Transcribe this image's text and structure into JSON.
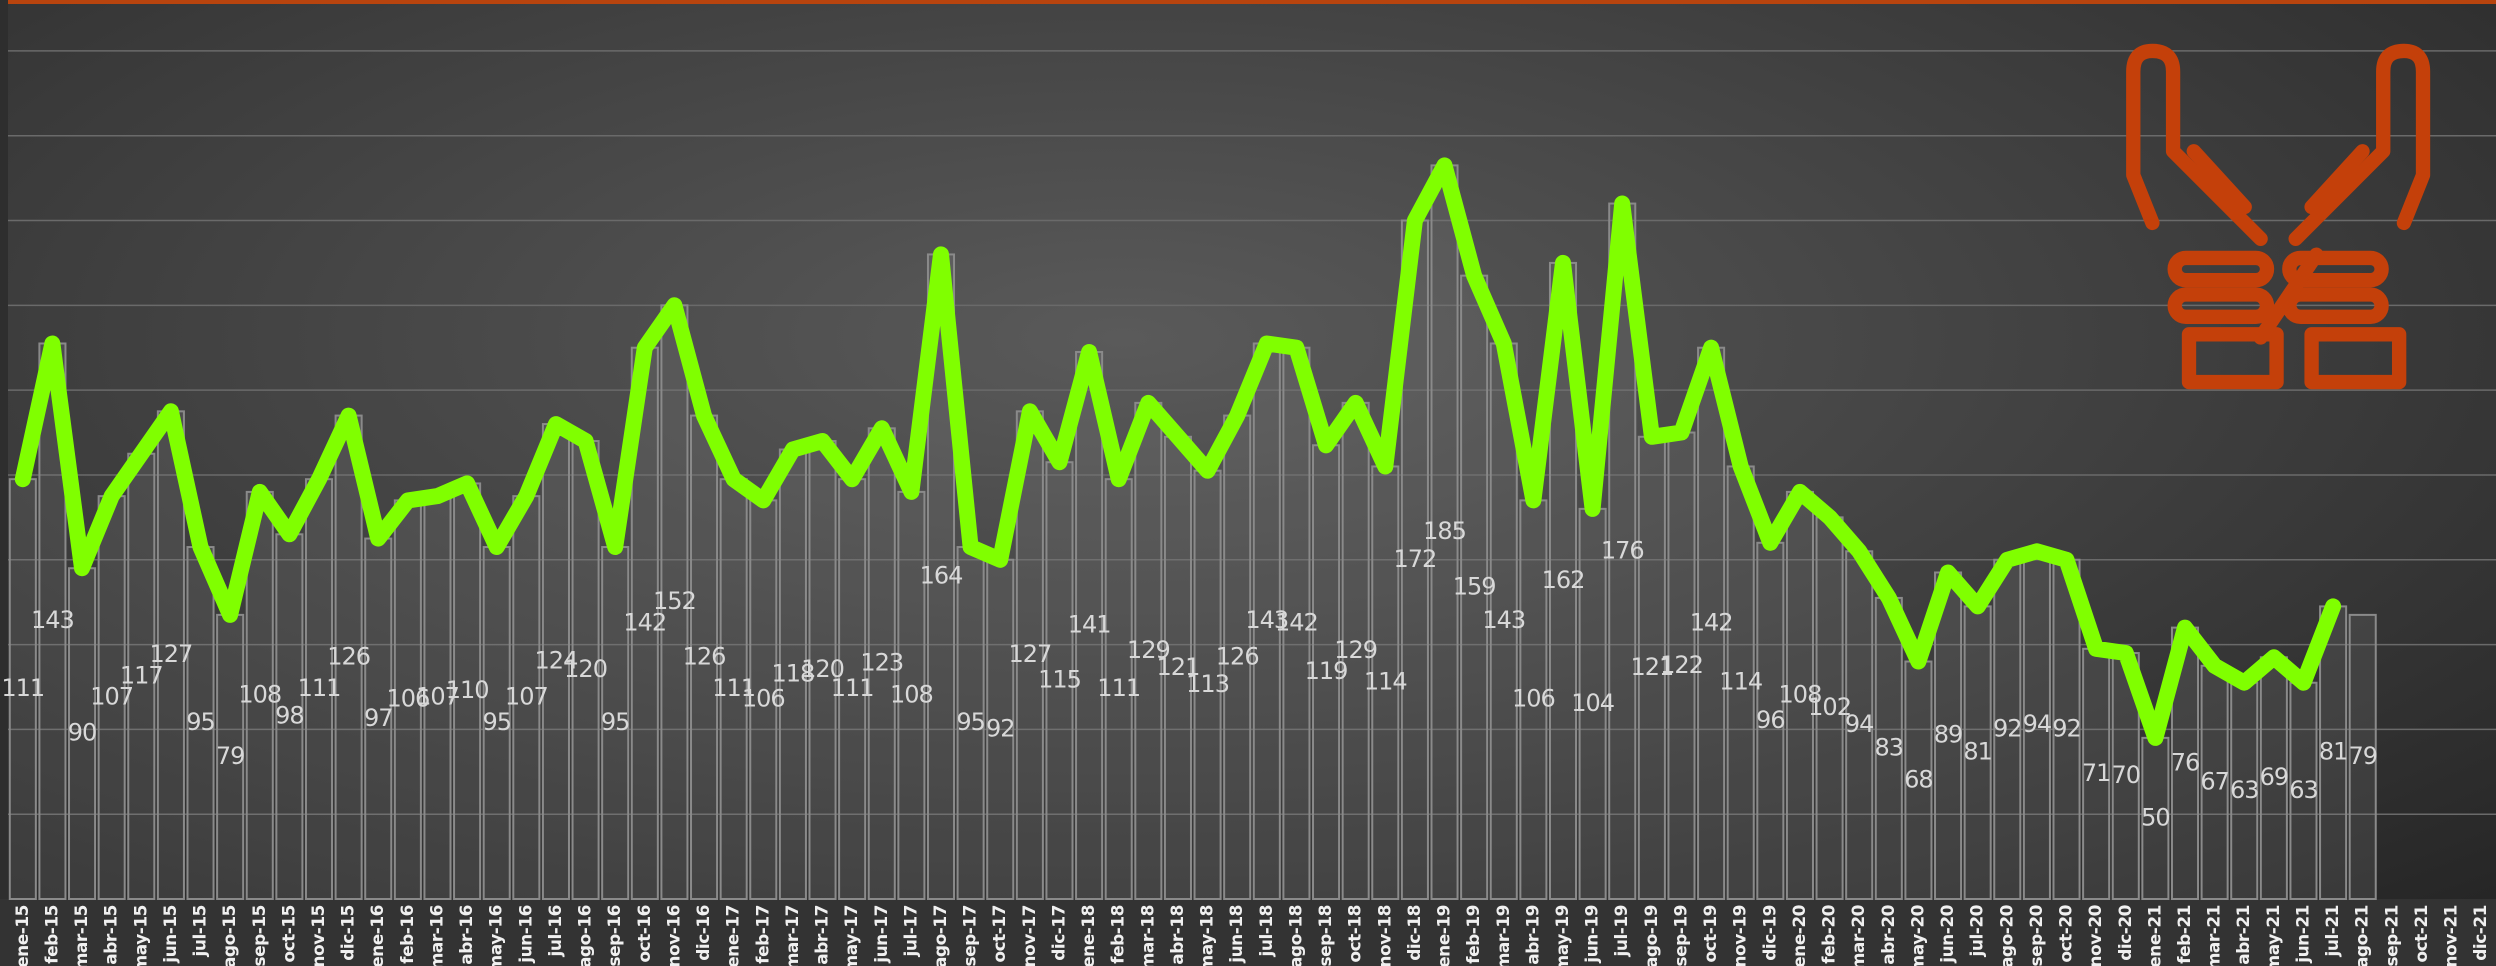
{
  "chart_data": {
    "type": "bar",
    "categories": [
      "ene-15",
      "feb-15",
      "mar-15",
      "abr-15",
      "may-15",
      "jun-15",
      "jul-15",
      "ago-15",
      "sep-15",
      "oct-15",
      "nov-15",
      "dic-15",
      "ene-16",
      "feb-16",
      "mar-16",
      "abr-16",
      "may-16",
      "jun-16",
      "jul-16",
      "ago-16",
      "sep-16",
      "oct-16",
      "nov-16",
      "dic-16",
      "ene-17",
      "feb-17",
      "mar-17",
      "abr-17",
      "may-17",
      "jun-17",
      "jul-17",
      "ago-17",
      "sep-17",
      "oct-17",
      "nov-17",
      "dic-17",
      "ene-18",
      "feb-18",
      "mar-18",
      "abr-18",
      "may-18",
      "jun-18",
      "jul-18",
      "ago-18",
      "sep-18",
      "oct-18",
      "nov-18",
      "dic-18",
      "ene-19",
      "feb-19",
      "mar-19",
      "abr-19",
      "may-19",
      "jun-19",
      "jul-19",
      "ago-19",
      "sep-19",
      "oct-19",
      "nov-19",
      "dic-19",
      "ene-20",
      "feb-20",
      "mar-20",
      "abr-20",
      "may-20",
      "jun-20",
      "jul-20",
      "ago-20",
      "sep-20",
      "oct-20",
      "nov-20",
      "dic-20",
      "ene-21",
      "feb-21",
      "mar-21",
      "abr-21",
      "may-21",
      "jun-21",
      "jul-21",
      "ago-21",
      "sep-21",
      "oct-21",
      "nov-21",
      "dic-21"
    ],
    "series": [
      {
        "type": "bar",
        "color": "#8a8a8a",
        "values": [
          111,
          143,
          90,
          107,
          117,
          127,
          95,
          79,
          108,
          98,
          111,
          126,
          97,
          106,
          107,
          110,
          95,
          107,
          124,
          120,
          95,
          142,
          152,
          126,
          111,
          106,
          118,
          120,
          111,
          123,
          108,
          164,
          95,
          92,
          127,
          115,
          141,
          111,
          129,
          121,
          113,
          126,
          143,
          142,
          119,
          129,
          114,
          172,
          185,
          159,
          143,
          106,
          162,
          104,
          176,
          121,
          122,
          142,
          114,
          96,
          108,
          102,
          94,
          83,
          68,
          89,
          81,
          92,
          94,
          92,
          71,
          70,
          50,
          76,
          67,
          63,
          69,
          63,
          81,
          79,
          null,
          null,
          null,
          null
        ]
      },
      {
        "type": "line",
        "color": "#80ff00",
        "values": [
          111,
          143,
          90,
          107,
          117,
          127,
          95,
          79,
          108,
          98,
          111,
          126,
          97,
          106,
          107,
          110,
          95,
          107,
          124,
          120,
          95,
          142,
          152,
          126,
          111,
          106,
          118,
          120,
          111,
          123,
          108,
          164,
          95,
          92,
          127,
          115,
          141,
          111,
          129,
          121,
          113,
          126,
          143,
          142,
          119,
          129,
          114,
          172,
          185,
          159,
          143,
          106,
          162,
          104,
          176,
          121,
          122,
          142,
          114,
          96,
          108,
          102,
          94,
          83,
          68,
          89,
          81,
          92,
          94,
          92,
          71,
          70,
          50,
          76,
          67,
          63,
          69,
          63,
          81,
          null,
          null,
          null,
          null,
          null
        ]
      }
    ],
    "ylim": [
      12,
      224
    ],
    "yticks": [
      32,
      52,
      72,
      92,
      112,
      132,
      152,
      172,
      192,
      212
    ],
    "grid": true
  }
}
